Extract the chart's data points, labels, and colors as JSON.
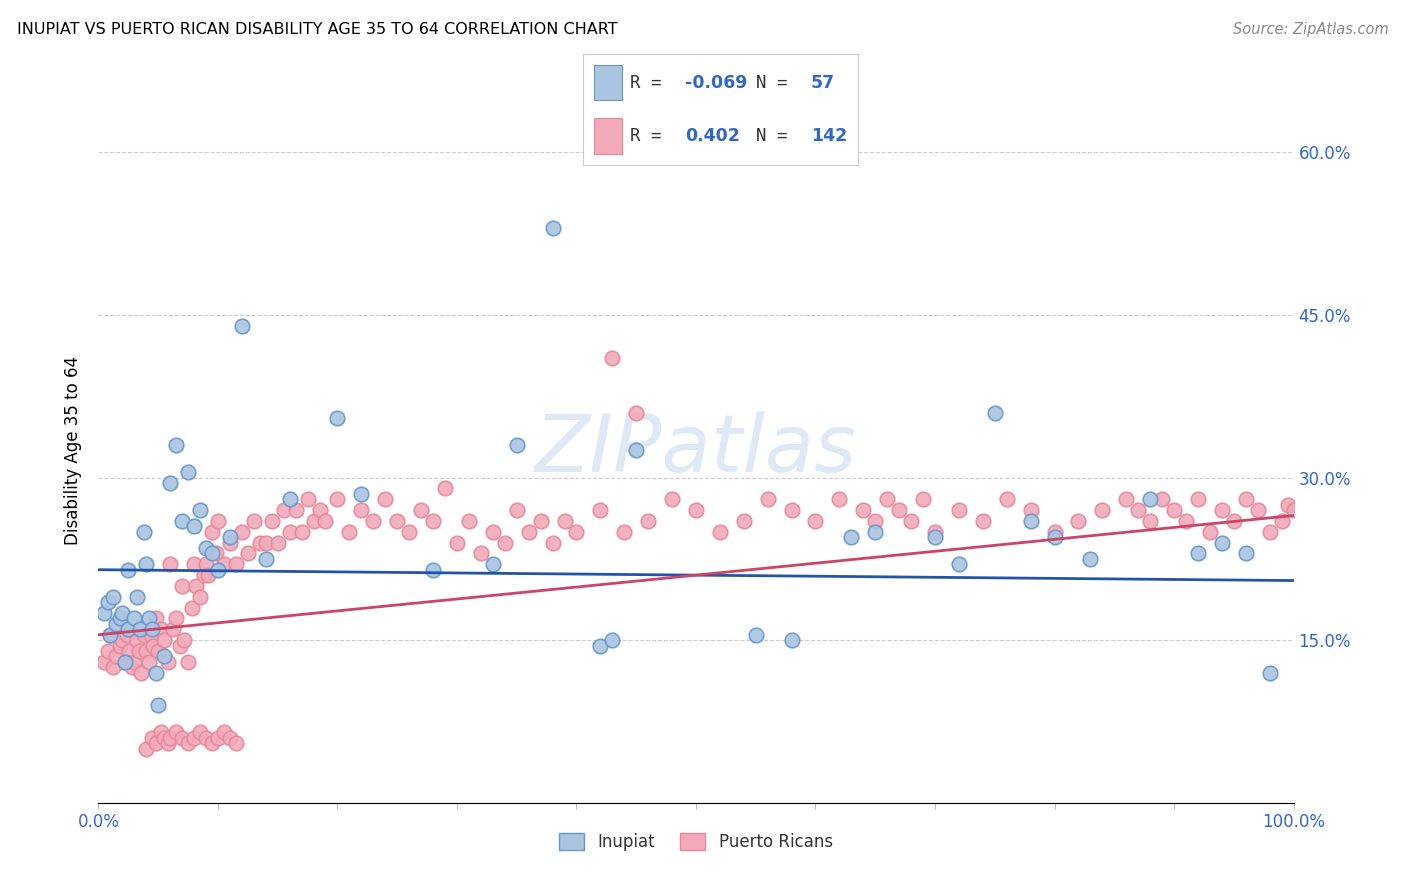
{
  "title": "INUPIAT VS PUERTO RICAN DISABILITY AGE 35 TO 64 CORRELATION CHART",
  "source": "Source: ZipAtlas.com",
  "ylabel": "Disability Age 35 to 64",
  "xlim": [
    0.0,
    1.0
  ],
  "ylim": [
    0.0,
    0.65
  ],
  "inupiat_color": "#aac4e2",
  "puerto_rican_color": "#f2aabb",
  "inupiat_edge_color": "#6699cc",
  "puerto_rican_edge_color": "#e8889a",
  "inupiat_line_color": "#2255aa",
  "puerto_rican_line_color": "#cc4466",
  "grid_color": "#cccccc",
  "background_color": "#ffffff",
  "legend_R_inupiat": "-0.069",
  "legend_N_inupiat": "57",
  "legend_R_puerto": "0.402",
  "legend_N_puerto": "142",
  "value_color": "#3366cc",
  "label_color": "#333333",
  "axis_color": "#3366cc",
  "inupiat_x": [
    0.005,
    0.008,
    0.01,
    0.012,
    0.015,
    0.018,
    0.02,
    0.022,
    0.025,
    0.025,
    0.03,
    0.032,
    0.035,
    0.038,
    0.04,
    0.042,
    0.045,
    0.048,
    0.05,
    0.055,
    0.06,
    0.065,
    0.07,
    0.075,
    0.08,
    0.085,
    0.09,
    0.095,
    0.1,
    0.11,
    0.12,
    0.14,
    0.16,
    0.2,
    0.22,
    0.28,
    0.33,
    0.35,
    0.38,
    0.42,
    0.43,
    0.45,
    0.55,
    0.58,
    0.63,
    0.65,
    0.7,
    0.72,
    0.75,
    0.78,
    0.8,
    0.83,
    0.88,
    0.92,
    0.94,
    0.96,
    0.98
  ],
  "inupiat_y": [
    0.175,
    0.185,
    0.155,
    0.19,
    0.165,
    0.17,
    0.175,
    0.13,
    0.16,
    0.215,
    0.17,
    0.19,
    0.16,
    0.25,
    0.22,
    0.17,
    0.16,
    0.12,
    0.09,
    0.135,
    0.295,
    0.33,
    0.26,
    0.305,
    0.255,
    0.27,
    0.235,
    0.23,
    0.215,
    0.245,
    0.44,
    0.225,
    0.28,
    0.355,
    0.285,
    0.215,
    0.22,
    0.33,
    0.53,
    0.145,
    0.15,
    0.325,
    0.155,
    0.15,
    0.245,
    0.25,
    0.245,
    0.22,
    0.36,
    0.26,
    0.245,
    0.225,
    0.28,
    0.23,
    0.24,
    0.23,
    0.12
  ],
  "puerto_x": [
    0.005,
    0.008,
    0.01,
    0.012,
    0.015,
    0.018,
    0.02,
    0.022,
    0.024,
    0.026,
    0.028,
    0.03,
    0.032,
    0.034,
    0.036,
    0.038,
    0.04,
    0.042,
    0.044,
    0.046,
    0.048,
    0.05,
    0.052,
    0.055,
    0.058,
    0.06,
    0.062,
    0.065,
    0.068,
    0.07,
    0.072,
    0.075,
    0.078,
    0.08,
    0.082,
    0.085,
    0.088,
    0.09,
    0.092,
    0.095,
    0.098,
    0.1,
    0.105,
    0.11,
    0.115,
    0.12,
    0.125,
    0.13,
    0.135,
    0.14,
    0.145,
    0.15,
    0.155,
    0.16,
    0.165,
    0.17,
    0.175,
    0.18,
    0.185,
    0.19,
    0.2,
    0.21,
    0.22,
    0.23,
    0.24,
    0.25,
    0.26,
    0.27,
    0.28,
    0.29,
    0.3,
    0.31,
    0.32,
    0.33,
    0.34,
    0.35,
    0.36,
    0.37,
    0.38,
    0.39,
    0.4,
    0.42,
    0.44,
    0.46,
    0.48,
    0.5,
    0.52,
    0.54,
    0.56,
    0.58,
    0.6,
    0.62,
    0.64,
    0.65,
    0.66,
    0.67,
    0.68,
    0.69,
    0.7,
    0.72,
    0.74,
    0.76,
    0.78,
    0.8,
    0.82,
    0.84,
    0.86,
    0.87,
    0.88,
    0.89,
    0.9,
    0.91,
    0.92,
    0.93,
    0.94,
    0.95,
    0.96,
    0.97,
    0.98,
    0.99,
    0.995,
    1.0,
    0.43,
    0.45,
    0.04,
    0.045,
    0.048,
    0.052,
    0.055,
    0.058,
    0.06,
    0.065,
    0.07,
    0.075,
    0.08,
    0.085,
    0.09,
    0.095,
    0.1,
    0.105,
    0.11,
    0.115
  ],
  "puerto_y": [
    0.13,
    0.14,
    0.155,
    0.125,
    0.135,
    0.145,
    0.15,
    0.13,
    0.155,
    0.14,
    0.125,
    0.13,
    0.15,
    0.14,
    0.12,
    0.155,
    0.14,
    0.13,
    0.155,
    0.145,
    0.17,
    0.14,
    0.16,
    0.15,
    0.13,
    0.22,
    0.16,
    0.17,
    0.145,
    0.2,
    0.15,
    0.13,
    0.18,
    0.22,
    0.2,
    0.19,
    0.21,
    0.22,
    0.21,
    0.25,
    0.23,
    0.26,
    0.22,
    0.24,
    0.22,
    0.25,
    0.23,
    0.26,
    0.24,
    0.24,
    0.26,
    0.24,
    0.27,
    0.25,
    0.27,
    0.25,
    0.28,
    0.26,
    0.27,
    0.26,
    0.28,
    0.25,
    0.27,
    0.26,
    0.28,
    0.26,
    0.25,
    0.27,
    0.26,
    0.29,
    0.24,
    0.26,
    0.23,
    0.25,
    0.24,
    0.27,
    0.25,
    0.26,
    0.24,
    0.26,
    0.25,
    0.27,
    0.25,
    0.26,
    0.28,
    0.27,
    0.25,
    0.26,
    0.28,
    0.27,
    0.26,
    0.28,
    0.27,
    0.26,
    0.28,
    0.27,
    0.26,
    0.28,
    0.25,
    0.27,
    0.26,
    0.28,
    0.27,
    0.25,
    0.26,
    0.27,
    0.28,
    0.27,
    0.26,
    0.28,
    0.27,
    0.26,
    0.28,
    0.25,
    0.27,
    0.26,
    0.28,
    0.27,
    0.25,
    0.26,
    0.275,
    0.27,
    0.41,
    0.36,
    0.05,
    0.06,
    0.055,
    0.065,
    0.06,
    0.055,
    0.06,
    0.065,
    0.06,
    0.055,
    0.06,
    0.065,
    0.06,
    0.055,
    0.06,
    0.065,
    0.06,
    0.055
  ]
}
